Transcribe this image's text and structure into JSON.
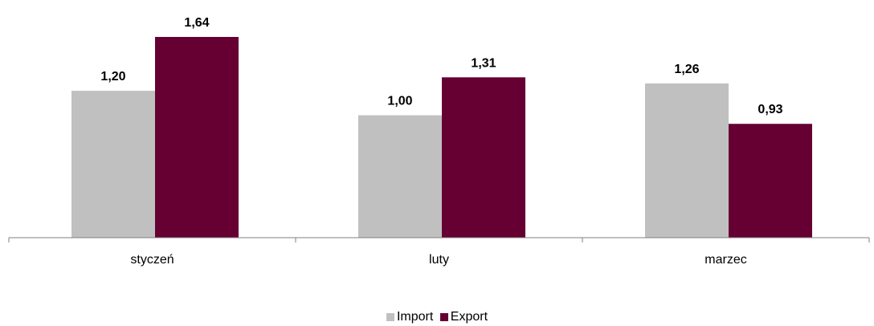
{
  "chart_data": {
    "type": "bar",
    "categories": [
      "styczeń",
      "luty",
      "marzec"
    ],
    "series": [
      {
        "name": "Import",
        "values": [
          1.2,
          1.0,
          1.26
        ],
        "labels": [
          "1,20",
          "1,00",
          "1,26"
        ],
        "color": "#c0c0c0"
      },
      {
        "name": "Export",
        "values": [
          1.64,
          1.31,
          0.93
        ],
        "labels": [
          "1,64",
          "1,31",
          "0,93"
        ],
        "color": "#660033"
      }
    ],
    "ylim": [
      0,
      1.64
    ],
    "legend_position": "bottom",
    "grid": false
  }
}
